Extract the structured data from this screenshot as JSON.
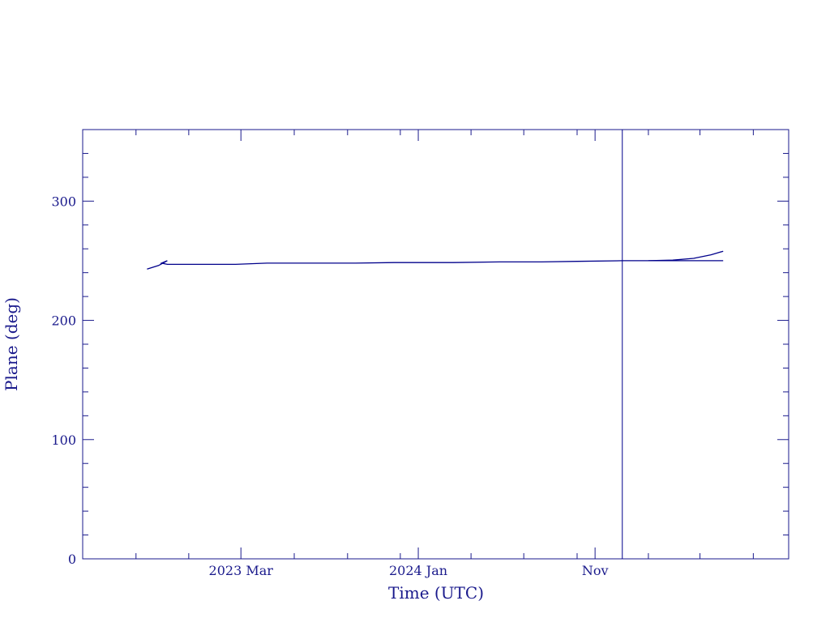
{
  "chart_data": {
    "type": "line",
    "xlabel": "Time (UTC)",
    "ylabel": "Plane (deg)",
    "xlim": [
      "2022-06-01",
      "2025-10-01"
    ],
    "ylim": [
      0,
      360
    ],
    "x_ticks": [
      {
        "date": "2023-03-01",
        "label": "2023 Mar"
      },
      {
        "date": "2024-01-01",
        "label": "2024 Jan"
      },
      {
        "date": "2024-11-01",
        "label": "Nov"
      }
    ],
    "x_minor_ticks": [
      "2022-09-01",
      "2022-12-01",
      "2023-06-01",
      "2023-09-01",
      "2023-12-01",
      "2024-04-01",
      "2024-07-01",
      "2024-10-01",
      "2025-02-01",
      "2025-05-01",
      "2025-08-01"
    ],
    "y_ticks": [
      0,
      100,
      200,
      300
    ],
    "y_minor_step": 20,
    "marker_date": "2024-12-18",
    "colors": {
      "axis": "#1a1a8c",
      "line": "#00008b"
    },
    "series": [
      {
        "x": [
          "2022-09-20",
          "2022-10-10",
          "2022-10-25",
          "2022-10-15",
          "2022-10-25",
          "2023-02-20",
          "2023-04-15",
          "2023-09-15",
          "2023-11-20",
          "2024-03-01",
          "2024-05-20",
          "2024-08-01",
          "2024-10-01",
          "2024-12-18",
          "2025-02-01",
          "2025-03-15",
          "2025-04-20",
          "2025-05-20",
          "2025-06-10"
        ],
        "y": [
          243,
          246,
          250,
          248,
          247,
          247,
          248,
          248,
          248.5,
          248.5,
          249,
          249,
          249.5,
          250,
          250,
          250.5,
          252,
          255,
          258
        ]
      },
      {
        "x": [
          "2025-02-01",
          "2025-04-01",
          "2025-06-10"
        ],
        "y": [
          250,
          250,
          250
        ]
      }
    ]
  }
}
